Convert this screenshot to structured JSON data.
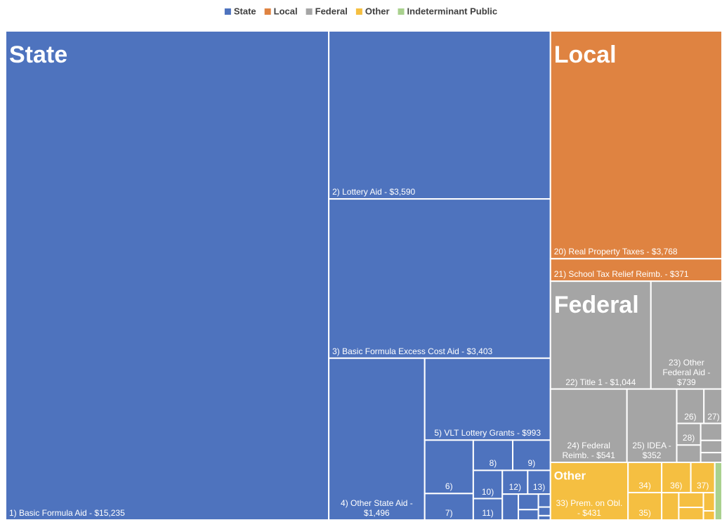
{
  "chart_data": {
    "type": "treemap",
    "legend": "top",
    "groups": [
      {
        "name": "State",
        "color": "#4e73be",
        "labels": [
          "1) Basic Formula Aid - $15,235",
          "2) Lottery Aid - $3,590",
          "3) Basic Formula Excess Cost Aid - $3,403",
          "4) Other State Aid - $1,496",
          "5) VLT Lottery Grants - $993",
          "6)",
          "7)",
          "8)",
          "9)",
          "10)",
          "11)",
          "12)",
          "13)",
          null,
          null,
          null,
          null,
          null,
          null
        ],
        "values": [
          15235,
          3590,
          3403,
          1496,
          993,
          250,
          124,
          115,
          110,
          79,
          60,
          58,
          52,
          40,
          30,
          20,
          15,
          10,
          5
        ]
      },
      {
        "name": "Local",
        "color": "#df8341",
        "labels": [
          "20) Real Property Taxes - $3,768",
          "21) School Tax Relief Reimb. - $371"
        ],
        "values": [
          3768,
          371
        ]
      },
      {
        "name": "Federal",
        "color": "#a5a5a5",
        "labels": [
          "22) Title 1 - $1,044",
          "23) Other Federal Aid - $739",
          "24) Federal Reimb. - $541",
          "25) IDEA - $352",
          "26)",
          "27)",
          "28)",
          null,
          null,
          null,
          null
        ],
        "values": [
          1044,
          739,
          541,
          352,
          90,
          60,
          50,
          40,
          35,
          25,
          20
        ]
      },
      {
        "name": "Other",
        "color": "#f5bf41",
        "labels": [
          "33) Prem. on Obl. - $431",
          "34)",
          "35)",
          "36)",
          "37)",
          null,
          null,
          null,
          null,
          null
        ],
        "values": [
          431,
          98,
          89,
          85,
          70,
          45,
          35,
          30,
          20,
          10
        ]
      },
      {
        "name": "Indeterminant Public",
        "color": "#a9d18e",
        "labels": [
          null
        ],
        "values": [
          40
        ]
      }
    ]
  }
}
